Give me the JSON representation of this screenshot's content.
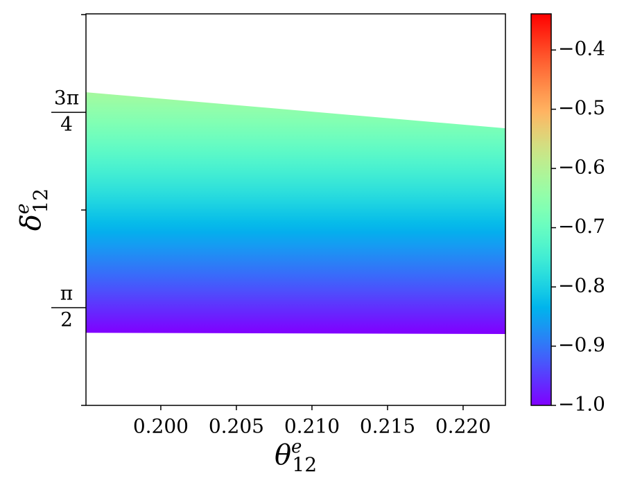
{
  "chart_data": {
    "type": "band",
    "x": [
      0.19505,
      0.2228
    ],
    "upper": [
      2.437,
      2.292
    ],
    "lower": [
      1.47,
      1.465
    ],
    "color_range": [
      -1.0,
      -0.62
    ],
    "xlim": [
      0.19505,
      0.2228
    ],
    "xticks": [
      {
        "value": 0.2,
        "label": "0.200"
      },
      {
        "value": 0.205,
        "label": "0.205"
      },
      {
        "value": 0.21,
        "label": "0.210"
      },
      {
        "value": 0.215,
        "label": "0.215"
      },
      {
        "value": 0.22,
        "label": "0.220"
      }
    ],
    "ylim": [
      1.178,
      2.752
    ],
    "yticks": [
      {
        "value": 1.178,
        "label": null
      },
      {
        "value": 1.5708,
        "label": {
          "num": "π",
          "den": "2"
        }
      },
      {
        "value": 1.9635,
        "label": null
      },
      {
        "value": 2.3562,
        "label": {
          "num": "3π",
          "den": "4"
        }
      },
      {
        "value": 2.7489,
        "label": null
      }
    ],
    "xlabel": {
      "base": "θ",
      "sup": "e",
      "sub": "12"
    },
    "ylabel": {
      "base": "δ",
      "sup": "e",
      "sub": "12"
    },
    "colorbar": {
      "cmap": "rainbow",
      "lim": [
        -1.0,
        -0.339
      ],
      "ticks": [
        {
          "value": -1.0,
          "label": "−1.0"
        },
        {
          "value": -0.9,
          "label": "−0.9"
        },
        {
          "value": -0.8,
          "label": "−0.8"
        },
        {
          "value": -0.7,
          "label": "−0.7"
        },
        {
          "value": -0.6,
          "label": "−0.6"
        },
        {
          "value": -0.5,
          "label": "−0.5"
        },
        {
          "value": -0.4,
          "label": "−0.4"
        }
      ]
    }
  }
}
